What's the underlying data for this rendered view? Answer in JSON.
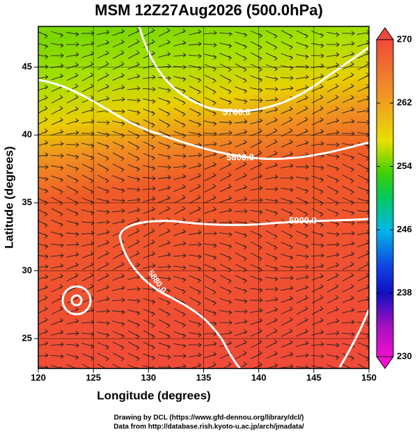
{
  "title": "MSM 12Z27Aug2026 (500.0hPa)",
  "map": {
    "x_label": "Longitude (degrees)",
    "y_label": "Latitude  (degrees)",
    "xlim": [
      120,
      150
    ],
    "xticks": [
      120,
      125,
      130,
      135,
      140,
      145,
      150
    ],
    "ylim": [
      22.8,
      48
    ],
    "yticks": [
      25,
      30,
      35,
      40,
      45
    ],
    "contour_labels": [
      "5700.0",
      "5800.0",
      "5900.0",
      "5880.0"
    ]
  },
  "colorbar": {
    "lim": [
      230,
      270
    ],
    "ticks": [
      230,
      238,
      246,
      254,
      262,
      270
    ]
  },
  "credits": [
    "Drawing by DCL (https://www.gfd-dennou.org/library/dcl/)",
    "Data from http://database.rish.kyoto-u.ac.jp/arch/jmadata/"
  ]
}
